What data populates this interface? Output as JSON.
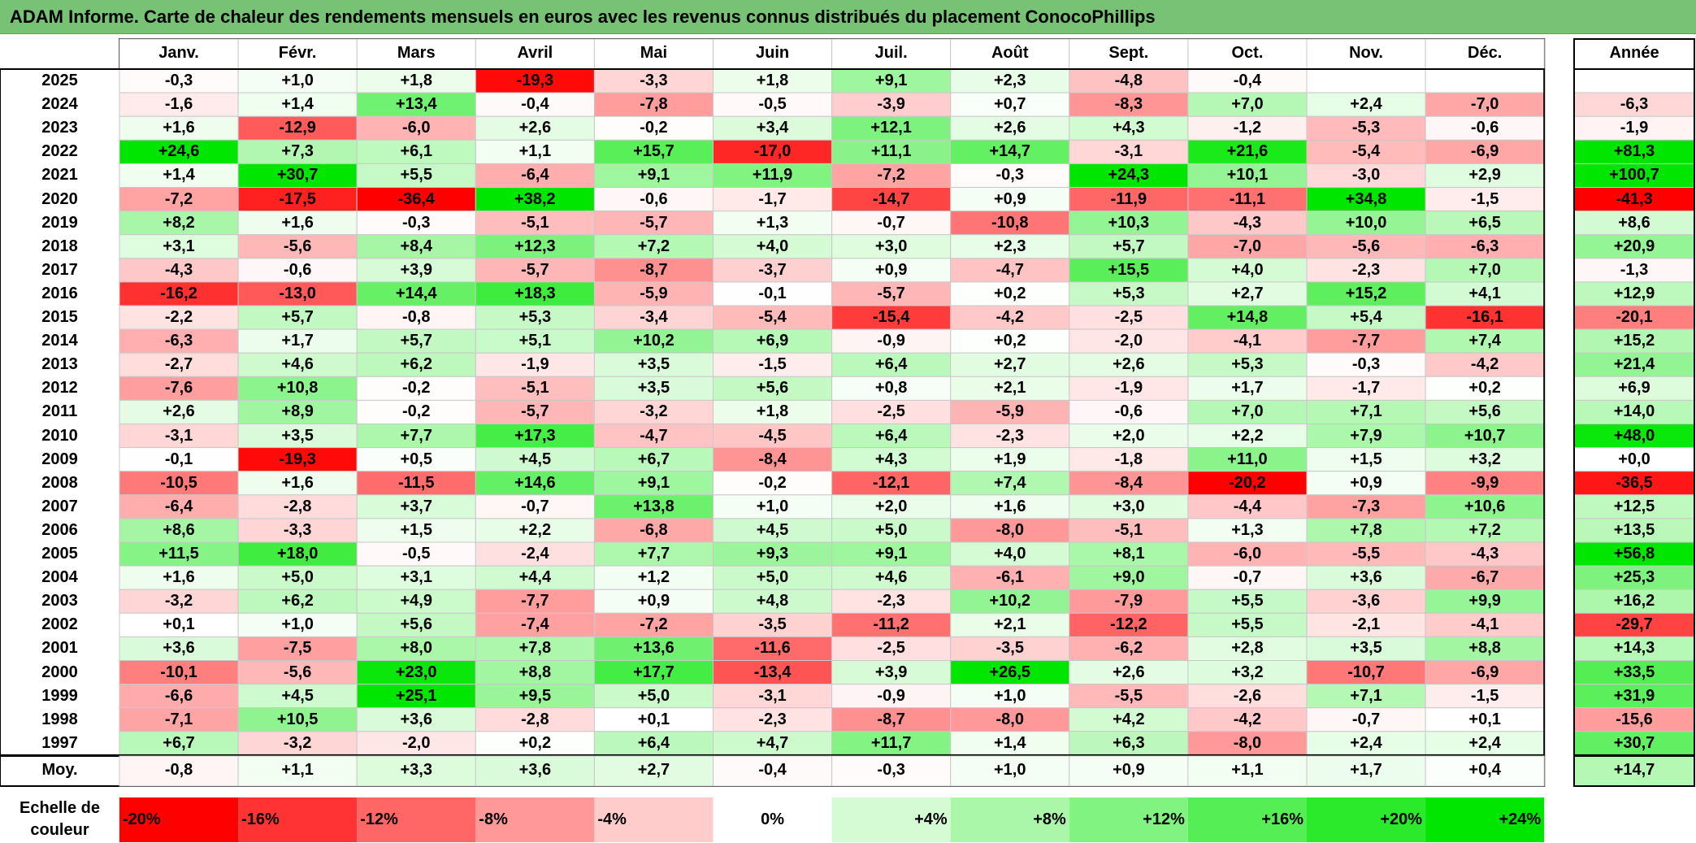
{
  "title": "ADAM Informe. Carte de chaleur des rendements mensuels en euros avec les revenus connus distribués du placement ConocoPhillips",
  "chart_data": {
    "type": "heatmap",
    "title": "ADAM Informe. Carte de chaleur des rendements mensuels en euros avec les revenus connus distribués du placement ConocoPhillips",
    "months": [
      "Janv.",
      "Févr.",
      "Mars",
      "Avril",
      "Mai",
      "Juin",
      "Juil.",
      "Août",
      "Sept.",
      "Oct.",
      "Nov.",
      "Déc."
    ],
    "annual_header": "Année",
    "rows": [
      {
        "year": "2025",
        "values": [
          -0.3,
          1.0,
          1.8,
          -19.3,
          -3.3,
          1.8,
          9.1,
          2.3,
          -4.8,
          -0.4,
          null,
          null
        ],
        "annual": null
      },
      {
        "year": "2024",
        "values": [
          -1.6,
          1.4,
          13.4,
          -0.4,
          -7.8,
          -0.5,
          -3.9,
          0.7,
          -8.3,
          7.0,
          2.4,
          -7.0
        ],
        "annual": -6.3
      },
      {
        "year": "2023",
        "values": [
          1.6,
          -12.9,
          -6.0,
          2.6,
          -0.2,
          3.4,
          12.1,
          2.6,
          4.3,
          -1.2,
          -5.3,
          -0.6
        ],
        "annual": -1.9
      },
      {
        "year": "2022",
        "values": [
          24.6,
          7.3,
          6.1,
          1.1,
          15.7,
          -17.0,
          11.1,
          14.7,
          -3.1,
          21.6,
          -5.4,
          -6.9
        ],
        "annual": 81.3
      },
      {
        "year": "2021",
        "values": [
          1.4,
          30.7,
          5.5,
          -6.4,
          9.1,
          11.9,
          -7.2,
          -0.3,
          24.3,
          10.1,
          -3.0,
          2.9
        ],
        "annual": 100.7
      },
      {
        "year": "2020",
        "values": [
          -7.2,
          -17.5,
          -36.4,
          38.2,
          -0.6,
          -1.7,
          -14.7,
          0.9,
          -11.9,
          -11.1,
          34.8,
          -1.5
        ],
        "annual": -41.3
      },
      {
        "year": "2019",
        "values": [
          8.2,
          1.6,
          -0.3,
          -5.1,
          -5.7,
          1.3,
          -0.7,
          -10.8,
          10.3,
          -4.3,
          10.0,
          6.5
        ],
        "annual": 8.6
      },
      {
        "year": "2018",
        "values": [
          3.1,
          -5.6,
          8.4,
          12.3,
          7.2,
          4.0,
          3.0,
          2.3,
          5.7,
          -7.0,
          -5.6,
          -6.3
        ],
        "annual": 20.9
      },
      {
        "year": "2017",
        "values": [
          -4.3,
          -0.6,
          3.9,
          -5.7,
          -8.7,
          -3.7,
          0.9,
          -4.7,
          15.5,
          4.0,
          -2.3,
          7.0
        ],
        "annual": -1.3
      },
      {
        "year": "2016",
        "values": [
          -16.2,
          -13.0,
          14.4,
          18.3,
          -5.9,
          -0.1,
          -5.7,
          0.2,
          5.3,
          2.7,
          15.2,
          4.1
        ],
        "annual": 12.9
      },
      {
        "year": "2015",
        "values": [
          -2.2,
          5.7,
          -0.8,
          5.3,
          -3.4,
          -5.4,
          -15.4,
          -4.2,
          -2.5,
          14.8,
          5.4,
          -16.1
        ],
        "annual": -20.1
      },
      {
        "year": "2014",
        "values": [
          -6.3,
          1.7,
          5.7,
          5.1,
          10.2,
          6.9,
          -0.9,
          0.2,
          -2.0,
          -4.1,
          -7.7,
          7.4
        ],
        "annual": 15.2
      },
      {
        "year": "2013",
        "values": [
          -2.7,
          4.6,
          6.2,
          -1.9,
          3.5,
          -1.5,
          6.4,
          2.7,
          2.6,
          5.3,
          -0.3,
          -4.2
        ],
        "annual": 21.4
      },
      {
        "year": "2012",
        "values": [
          -7.6,
          10.8,
          -0.2,
          -5.1,
          3.5,
          5.6,
          0.8,
          2.1,
          -1.9,
          1.7,
          -1.7,
          0.2
        ],
        "annual": 6.9
      },
      {
        "year": "2011",
        "values": [
          2.6,
          8.9,
          -0.2,
          -5.7,
          -3.2,
          1.8,
          -2.5,
          -5.9,
          -0.6,
          7.0,
          7.1,
          5.6
        ],
        "annual": 14.0
      },
      {
        "year": "2010",
        "values": [
          -3.1,
          3.5,
          7.7,
          17.3,
          -4.7,
          -4.5,
          6.4,
          -2.3,
          2.0,
          2.2,
          7.9,
          10.7
        ],
        "annual": 48.0
      },
      {
        "year": "2009",
        "values": [
          -0.1,
          -19.3,
          0.5,
          4.5,
          6.7,
          -8.4,
          4.3,
          1.9,
          -1.8,
          11.0,
          1.5,
          3.2
        ],
        "annual": 0.0
      },
      {
        "year": "2008",
        "values": [
          -10.5,
          1.6,
          -11.5,
          14.6,
          9.1,
          -0.2,
          -12.1,
          7.4,
          -8.4,
          -20.2,
          0.9,
          -9.9
        ],
        "annual": -36.5
      },
      {
        "year": "2007",
        "values": [
          -6.4,
          -2.8,
          3.7,
          -0.7,
          13.8,
          1.0,
          2.0,
          1.6,
          3.0,
          -4.4,
          -7.3,
          10.6
        ],
        "annual": 12.5
      },
      {
        "year": "2006",
        "values": [
          8.6,
          -3.3,
          1.5,
          2.2,
          -6.8,
          4.5,
          5.0,
          -8.0,
          -5.1,
          1.3,
          7.8,
          7.2
        ],
        "annual": 13.5
      },
      {
        "year": "2005",
        "values": [
          11.5,
          18.0,
          -0.5,
          -2.4,
          7.7,
          9.3,
          9.1,
          4.0,
          8.1,
          -6.0,
          -5.5,
          -4.3
        ],
        "annual": 56.8
      },
      {
        "year": "2004",
        "values": [
          1.6,
          5.0,
          3.1,
          4.4,
          1.2,
          5.0,
          4.6,
          -6.1,
          9.0,
          -0.7,
          3.6,
          -6.7
        ],
        "annual": 25.3
      },
      {
        "year": "2003",
        "values": [
          -3.2,
          6.2,
          4.9,
          -7.7,
          0.9,
          4.8,
          -2.3,
          10.2,
          -7.9,
          5.5,
          -3.6,
          9.9
        ],
        "annual": 16.2
      },
      {
        "year": "2002",
        "values": [
          0.1,
          1.0,
          5.6,
          -7.4,
          -7.2,
          -3.5,
          -11.2,
          2.1,
          -12.2,
          5.5,
          -2.1,
          -4.1
        ],
        "annual": -29.7
      },
      {
        "year": "2001",
        "values": [
          3.6,
          -7.5,
          8.0,
          7.8,
          13.6,
          -11.6,
          -2.5,
          -3.5,
          -6.2,
          2.8,
          3.5,
          8.8
        ],
        "annual": 14.3
      },
      {
        "year": "2000",
        "values": [
          -10.1,
          -5.6,
          23.0,
          8.8,
          17.7,
          -13.4,
          3.9,
          26.5,
          2.6,
          3.2,
          -10.7,
          -6.9
        ],
        "annual": 33.5
      },
      {
        "year": "1999",
        "values": [
          -6.6,
          4.5,
          25.1,
          9.5,
          5.0,
          -3.1,
          -0.9,
          1.0,
          -5.5,
          -2.6,
          7.1,
          -1.5
        ],
        "annual": 31.9
      },
      {
        "year": "1998",
        "values": [
          -7.1,
          10.5,
          3.6,
          -2.8,
          0.1,
          -2.3,
          -8.7,
          -8.0,
          4.2,
          -4.2,
          -0.7,
          0.1
        ],
        "annual": -15.6
      },
      {
        "year": "1997",
        "values": [
          6.7,
          -3.2,
          -2.0,
          0.2,
          6.4,
          4.7,
          11.7,
          1.4,
          6.3,
          -8.0,
          2.4,
          2.4
        ],
        "annual": 30.7
      }
    ],
    "average": {
      "label": "Moy.",
      "values": [
        -0.8,
        1.1,
        3.3,
        3.6,
        2.7,
        -0.4,
        -0.3,
        1.0,
        0.9,
        1.1,
        1.7,
        0.4
      ],
      "annual": 14.7
    },
    "scale": {
      "label_line1": "Echelle de",
      "label_line2": "couleur",
      "items": [
        {
          "text": "-20%",
          "value": -20
        },
        {
          "text": "-16%",
          "value": -16
        },
        {
          "text": "-12%",
          "value": -12
        },
        {
          "text": "-8%",
          "value": -8
        },
        {
          "text": "-4%",
          "value": -4
        },
        {
          "text": "0%",
          "value": 0
        },
        {
          "text": "+4%",
          "value": 4
        },
        {
          "text": "+8%",
          "value": 8
        },
        {
          "text": "+12%",
          "value": 12
        },
        {
          "text": "+16%",
          "value": 16
        },
        {
          "text": "+20%",
          "value": 20
        },
        {
          "text": "+24%",
          "value": 24
        }
      ]
    },
    "colors": {
      "negative_max": "#ff0000",
      "neutral": "#ffffff",
      "positive_max": "#00e600",
      "title_bg": "#77c275",
      "grid": "#c8c8c8",
      "border": "#000000"
    }
  }
}
